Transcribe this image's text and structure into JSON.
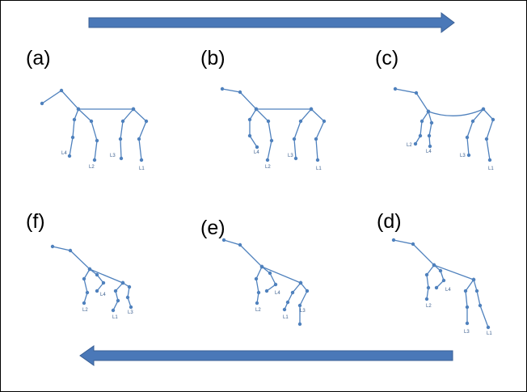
{
  "panels": [
    {
      "label": "(a)",
      "legs": [
        "L4",
        "L2",
        "L3",
        "L1"
      ]
    },
    {
      "label": "(b)",
      "legs": [
        "L4",
        "L2",
        "L3",
        "L1"
      ]
    },
    {
      "label": "(c)",
      "legs": [
        "L2",
        "L4",
        "L3",
        "L1"
      ]
    },
    {
      "label": "(f)",
      "legs": [
        "L2",
        "L4",
        "L1",
        "L3"
      ]
    },
    {
      "label": "(e)",
      "legs": [
        "L2",
        "L4",
        "L1",
        "L3"
      ]
    },
    {
      "label": "(d)",
      "legs": [
        "L2",
        "L4",
        "L3",
        "L1"
      ]
    }
  ]
}
